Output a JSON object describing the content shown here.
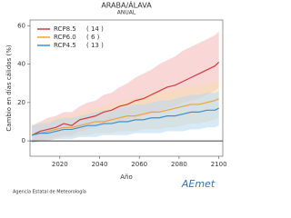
{
  "chart_data": {
    "type": "line",
    "title": "ARABA/ÁLAVA",
    "subtitle": "ANUAL",
    "x_label": "Año",
    "y_label": "Cambio en días cálidos (%)",
    "x": [
      2006,
      2010,
      2014,
      2018,
      2022,
      2026,
      2030,
      2034,
      2038,
      2042,
      2046,
      2050,
      2054,
      2058,
      2062,
      2066,
      2070,
      2074,
      2078,
      2082,
      2086,
      2090,
      2094,
      2098,
      2100
    ],
    "xlim": [
      2005,
      2102
    ],
    "xticks": [
      2020,
      2040,
      2060,
      2080,
      2100
    ],
    "ylim": [
      -8,
      63
    ],
    "yticks": [
      0,
      20,
      40,
      60
    ],
    "reference_line": 0,
    "legend_position": "upper left",
    "series": [
      {
        "name": "RCP8.5",
        "models": "( 14 )",
        "color": "#d33a3a",
        "band_color": "#f4b6b6",
        "values": [
          3,
          5,
          6,
          7,
          9,
          8,
          11,
          12,
          13,
          15,
          16,
          18,
          19,
          21,
          22,
          24,
          26,
          28,
          29,
          31,
          33,
          35,
          37,
          39,
          41
        ],
        "upper": [
          8,
          10,
          12,
          13,
          15,
          15,
          18,
          20,
          21,
          24,
          25,
          28,
          30,
          33,
          35,
          37,
          40,
          42,
          44,
          47,
          49,
          51,
          53,
          55,
          57
        ],
        "lower": [
          -1,
          0,
          1,
          2,
          3,
          3,
          5,
          6,
          7,
          8,
          9,
          10,
          11,
          12,
          13,
          14,
          15,
          17,
          18,
          20,
          21,
          22,
          24,
          26,
          28
        ]
      },
      {
        "name": "RCP6.0",
        "models": "( 6 )",
        "color": "#f0a23a",
        "band_color": "#f8dcb0",
        "values": [
          3,
          4,
          5,
          6,
          7,
          7,
          8,
          9,
          10,
          10,
          11,
          12,
          13,
          13,
          14,
          15,
          15,
          16,
          17,
          18,
          19,
          19,
          20,
          21,
          22
        ],
        "upper": [
          8,
          9,
          10,
          12,
          13,
          13,
          15,
          16,
          17,
          18,
          19,
          20,
          22,
          22,
          23,
          25,
          25,
          26,
          27,
          28,
          29,
          29,
          30,
          31,
          31
        ],
        "lower": [
          -1,
          0,
          0,
          1,
          2,
          2,
          3,
          3,
          4,
          4,
          4,
          5,
          5,
          5,
          6,
          6,
          6,
          7,
          7,
          8,
          9,
          9,
          10,
          11,
          12
        ]
      },
      {
        "name": "RCP4.5",
        "models": "( 13 )",
        "color": "#3a8fd3",
        "band_color": "#b8d8f0",
        "values": [
          3,
          4,
          4,
          5,
          6,
          6,
          7,
          8,
          8,
          9,
          9,
          10,
          10,
          11,
          11,
          12,
          12,
          13,
          13,
          14,
          15,
          15,
          16,
          16,
          17
        ],
        "upper": [
          8,
          9,
          9,
          11,
          12,
          12,
          13,
          14,
          15,
          16,
          16,
          17,
          18,
          19,
          19,
          20,
          21,
          21,
          22,
          23,
          24,
          24,
          25,
          25,
          26
        ],
        "lower": [
          -1,
          0,
          0,
          1,
          1,
          1,
          2,
          2,
          2,
          3,
          3,
          3,
          3,
          4,
          4,
          4,
          4,
          5,
          5,
          5,
          6,
          6,
          7,
          7,
          8
        ]
      }
    ],
    "footer": "Agencia Estatal de Meteorología",
    "logo": "AEmet"
  }
}
